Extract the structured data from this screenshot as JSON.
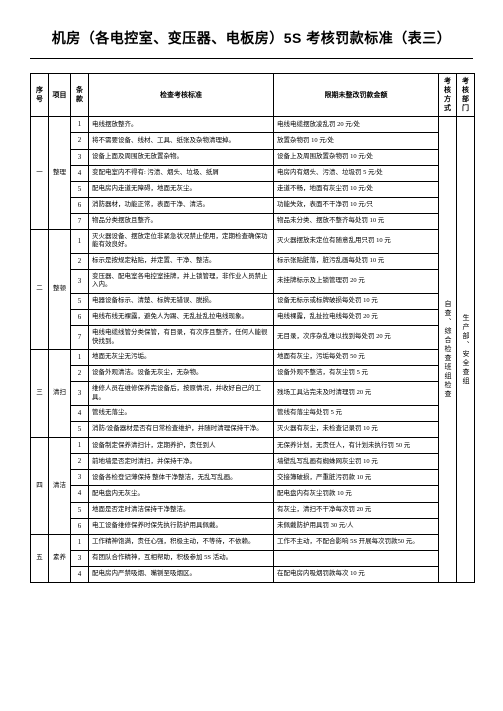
{
  "title": "机房（各电控室、变压器、电板房）5S 考核罚款标准（表三）",
  "headers": {
    "seq": "序号",
    "project": "项目",
    "clause": "条款",
    "inspect": "检查考核标准",
    "penalty": "限期未整改罚款金额",
    "method": "考核方式",
    "dept": "考核部门"
  },
  "method_text": "自查、综合检查班组检查",
  "dept_text": "生产部、安全查组",
  "groups": [
    {
      "seq": "一",
      "project": "整理",
      "rows": [
        {
          "n": "1",
          "i": "电线摆放整齐。",
          "p": "电线电缆摆放凌乱罚 20 元/处"
        },
        {
          "n": "2",
          "i": "将不需要设备、线材、工具、纸张及杂物清理掉。",
          "p": "放置杂物罚 10 元/处"
        },
        {
          "n": "3",
          "i": "设备上面及周围放无放置杂物。",
          "p": "设备上及周围放置杂物罚 10 元/处"
        },
        {
          "n": "4",
          "i": "变配电室内不得有: 污渍、烟头、垃圾、纸屑",
          "p": "电房内有烟头、污渍、垃圾罚 5 元/处"
        },
        {
          "n": "5",
          "i": "配电房内走道无障碍，地面无灰尘。",
          "p": "走道不畅，地面有灰尘罚 10 元/处"
        },
        {
          "n": "6",
          "i": "消防器材，功能正常，表面干净、清洁。",
          "p": "功能失效，表面不干净罚 10 元/只"
        },
        {
          "n": "7",
          "i": "物品分类摆放且整齐。",
          "p": "物品未分类、摆放不整齐每处罚 10 元"
        }
      ]
    },
    {
      "seq": "二",
      "project": "整顿",
      "rows": [
        {
          "n": "1",
          "i": "灭火器设备、摆放定位非紧急状况禁止使用，定期检查确保功能有效良好。",
          "p": "灭火器摆放未定位有随意乱用只罚 10 元"
        },
        {
          "n": "2",
          "i": "标示是按规定粘贴，并定置、干净、整洁。",
          "p": "标示张贴脏落，脏污乱画每处罚 10 元"
        },
        {
          "n": "3",
          "i": "变压器、配电室各电控室挂牌，并上锁管理，非作业人员禁止入内。",
          "p": "未挂牌标示及上锁管理罚 20 元"
        },
        {
          "n": "5",
          "i": "电器设备标示、清楚、标牌无错误、脱损。",
          "p": "设备无标示或标牌破损每处罚 10 元"
        },
        {
          "n": "6",
          "i": "电线布线无裸露，避免人为踢、无乱扯乱拉电线现象。",
          "p": "电线裸露，乱扯拉电线每处罚 20 元"
        },
        {
          "n": "7",
          "i": "电线电缆线管分类保管，有目录，有次序且整齐，任何人能很快找到。",
          "p": "无目录，次序杂乱难以找到每处罚 20 元"
        }
      ]
    },
    {
      "seq": "三",
      "project": "清扫",
      "rows": [
        {
          "n": "1",
          "i": "地面无灰尘无污垢。",
          "p": "地面有灰尘，污垢每处罚 50 元"
        },
        {
          "n": "2",
          "i": "设备外观清洁。设备无灰尘，无杂物。",
          "p": "设备外观不整洁，有灰尘罚 5 元"
        },
        {
          "n": "3",
          "i": "维修人员在维修保养完设备后，按原情况，并收好自己的工具。",
          "p": "残场工具沾完未及时清理罚 20 元"
        },
        {
          "n": "4",
          "i": "管线无落尘。",
          "p": "管线有落尘每处罚 5 元"
        },
        {
          "n": "5",
          "i": "消防/设备器材是否有日常检查维护，并随时清理保持干净。",
          "p": "灭火器有灰尘，未检查记录罚 10 元"
        }
      ]
    },
    {
      "seq": "四",
      "project": "清洁",
      "rows": [
        {
          "n": "1",
          "i": "设备制定保养清扫计，定期养护，责任到人",
          "p": "无保养计划，无责任人，有计划未执行罚 50 元"
        },
        {
          "n": "2",
          "i": "前地墙是否定时清扫，并保持干净。",
          "p": "墙壁乱写乱画有蜘蛛网灰尘罚 10 元"
        },
        {
          "n": "3",
          "i": "设备各检登记薄保持 整体干净整洁，无乱写乱画。",
          "p": "交接簿破损，严重脏污罚款 10 元"
        },
        {
          "n": "4",
          "i": "配电盘内无灰尘。",
          "p": "配电盘内有灰尘罚款 10 元"
        },
        {
          "n": "5",
          "i": "地面是否定时清洁保持干净整洁。",
          "p": "有灰尘，清扫不干净每次罚 20 元"
        },
        {
          "n": "6",
          "i": "电工设备维修保养时保先执行防护用具佩戴。",
          "p": "未佩戴防护用具罚 30 元/人"
        }
      ]
    },
    {
      "seq": "五",
      "project": "素养",
      "rows": [
        {
          "n": "1",
          "i": "工作精神饱满，责任心强，积极主动，不等待，不依赖。",
          "p": "工作不主动，不配合影响 5S 开展每次罚款50 元。"
        },
        {
          "n": "3",
          "i": "有团队合作精神，互相帮助，积极参加 5S 活动。",
          "p": ""
        },
        {
          "n": "4",
          "i": "配电房内严禁吸烟、嘴铡至吸烟区。",
          "p": "在配电房内吸烟罚款每次 10 元"
        }
      ]
    }
  ]
}
